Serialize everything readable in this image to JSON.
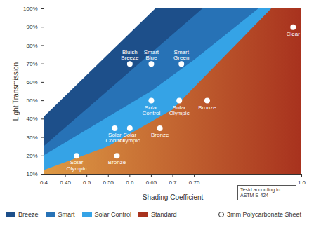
{
  "chart_data": {
    "type": "area",
    "xlabel": "Shading Coefficient",
    "ylabel": "Light Transmission",
    "xlim": [
      0.4,
      1.0
    ],
    "xticks": [
      0.4,
      0.45,
      0.5,
      0.55,
      0.6,
      0.65,
      0.7,
      0.75,
      {
        "value": 1,
        "label": "1.0"
      }
    ],
    "ylim": [
      10,
      100
    ],
    "yticks": [
      {
        "value": 10,
        "label": "10%"
      },
      {
        "value": 20,
        "label": "20%"
      },
      {
        "value": 30,
        "label": "30%"
      },
      {
        "value": 40,
        "label": "40%"
      },
      {
        "value": 50,
        "label": "50%"
      },
      {
        "value": 60,
        "label": "60%"
      },
      {
        "value": 70,
        "label": "70%"
      },
      {
        "value": 80,
        "label": "80%"
      },
      {
        "value": 90,
        "label": "90%"
      },
      {
        "value": 100,
        "label": "100%"
      }
    ],
    "legend": "bottom",
    "series": [
      {
        "name": "Breeze",
        "color": "#1d4f8a",
        "x": [
          0.4,
          0.66,
          1.0
        ],
        "values": [
          41,
          100,
          100
        ]
      },
      {
        "name": "Smart",
        "color": "#2772b6",
        "x": [
          0.4,
          0.77,
          1.0
        ],
        "values": [
          25,
          100,
          100
        ]
      },
      {
        "name": "Solar Control",
        "color": "#35a3e6",
        "x": [
          0.4,
          0.65,
          0.75,
          0.9,
          1.0
        ],
        "values": [
          20,
          55,
          72,
          100,
          100
        ]
      },
      {
        "name": "Standard",
        "color": "#a8321e",
        "x": [
          0.4,
          0.55,
          0.7,
          0.75,
          0.93,
          1.0
        ],
        "values": [
          12,
          25,
          45,
          57,
          100,
          100
        ]
      }
    ],
    "points": {
      "name": "3mm Polycarbonate Sheet",
      "marker": "circle",
      "x": [
        0.6,
        0.65,
        0.72,
        0.65,
        0.715,
        0.78,
        0.98,
        0.565,
        0.6,
        0.67,
        0.476,
        0.57
      ],
      "values": [
        70,
        70,
        70,
        50,
        50,
        50,
        90,
        35,
        35,
        35,
        20,
        20
      ],
      "labels": [
        "Bluish Breeze",
        "Smart Blue",
        "Smart Green",
        "Solar Control",
        "Solar Olympic",
        "Bronze",
        "Clear",
        "Solar Control",
        "Solar Olympic",
        "Bronze",
        "Solar Olympic",
        "Bronze"
      ]
    },
    "annotations": [
      "Testd according to ASTM E-424"
    ]
  }
}
